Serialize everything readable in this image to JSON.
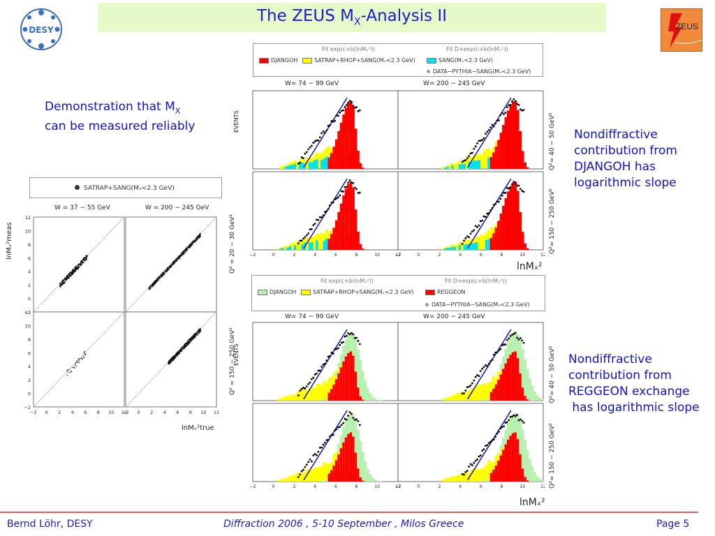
{
  "header": {
    "title_main": "The ZEUS M",
    "title_sub": "X",
    "title_rest": "-Analysis II",
    "desy_logo_text": "DESY",
    "zeus_logo_text": "ZEUS"
  },
  "notes": {
    "demo_line1_main": "Demonstration that M",
    "demo_line1_sub": "X",
    "demo_line2": "can be measured reliably",
    "djangoh_note": "Nondiffractive\ncontribution from\nDJANGOH has\nlogarithmic slope",
    "reggeon_note": "Nondiffractive\ncontribution from\nREGGEON exchange\n has logarithmic slope"
  },
  "left_figure": {
    "legend": "SATRAP+SANG(Mₓ<2.3 GeV)",
    "w_label_left": "W = 37 − 55 GeV",
    "w_label_right": "W = 200 − 245 GeV",
    "y_axis_label": "lnMₓ²meas",
    "x_axis_label": "lnMₓ²true",
    "y_ticks": [
      "12",
      "10",
      "8",
      "6",
      "4",
      "2",
      "0",
      "−2"
    ],
    "x_ticks": [
      "−2",
      "0",
      "2",
      "4",
      "6",
      "8",
      "10",
      "12"
    ]
  },
  "top_figure": {
    "fit_label_1": "Fit exp(c+b(lnMₓ²))",
    "fit_label_2": "Fit D+exp(c+b(lnMₓ²))",
    "legend_items": [
      "DJANGOH",
      "SATRAP+RHOP+SANG(Mₓ<2.3 GeV)",
      "SANG(Mₓ<2.3 GeV)",
      "DATA−PYTHIA−SANG(Mₓ<2.3 GeV)"
    ],
    "w_label_left": "W= 74 − 99 GeV",
    "w_label_right": "W= 200 − 245 GeV",
    "y_axis_label": "EVENTS",
    "q2_label_top": "Q²= 40 − 50 GeV²",
    "q2_label_bottom": "Q²= 150 − 250 GeV²",
    "q2_label_left": "Q² = 20 − 30 GeV²",
    "x_axis_label": "lnMₓ²",
    "x_ticks": [
      "−2",
      "0",
      "2",
      "4",
      "6",
      "8",
      "10",
      "12"
    ]
  },
  "bottom_figure": {
    "fit_label_1": "Fit exp(c+b(lnMₓ²))",
    "fit_label_2": "Fit D+exp(c+b(lnMₓ²))",
    "legend_items": [
      "DJANGOH",
      "SATRAP+RHOP+SANG(Mₓ<2.3 GeV)",
      "REGGEON",
      "DATA−PYTHIA−SANG(Mₓ<2.3 GeV)"
    ],
    "w_label_left": "W= 74 − 99 GeV",
    "w_label_right": "W= 200 − 245 GeV",
    "y_axis_label": "EVENTS",
    "q2_label_top": "Q²= 40 − 50 GeV²",
    "q2_label_bottom": "Q²= 150 − 250 GeV²",
    "q2_label_left": "Q² = 150 − 250 GeV²",
    "x_axis_label": "lnMₓ²",
    "x_ticks": [
      "−2",
      "0",
      "2",
      "4",
      "6",
      "8",
      "10",
      "12"
    ]
  },
  "footer": {
    "author": "Bernd Löhr, DESY",
    "conference": "Diffraction 2006 ,  5-10 September ,  Milos Greece",
    "page": "Page 5"
  },
  "colors": {
    "title_bg": "#e6f9c8",
    "title_text": "#1a1ad0",
    "note_text": "#1212c8",
    "footer_line": "#e85a4f",
    "djangoh": "#ff0000",
    "satrap": "#ffff00",
    "sang": "#00e0f0",
    "djangoh_green": "#b8f0b0"
  }
}
